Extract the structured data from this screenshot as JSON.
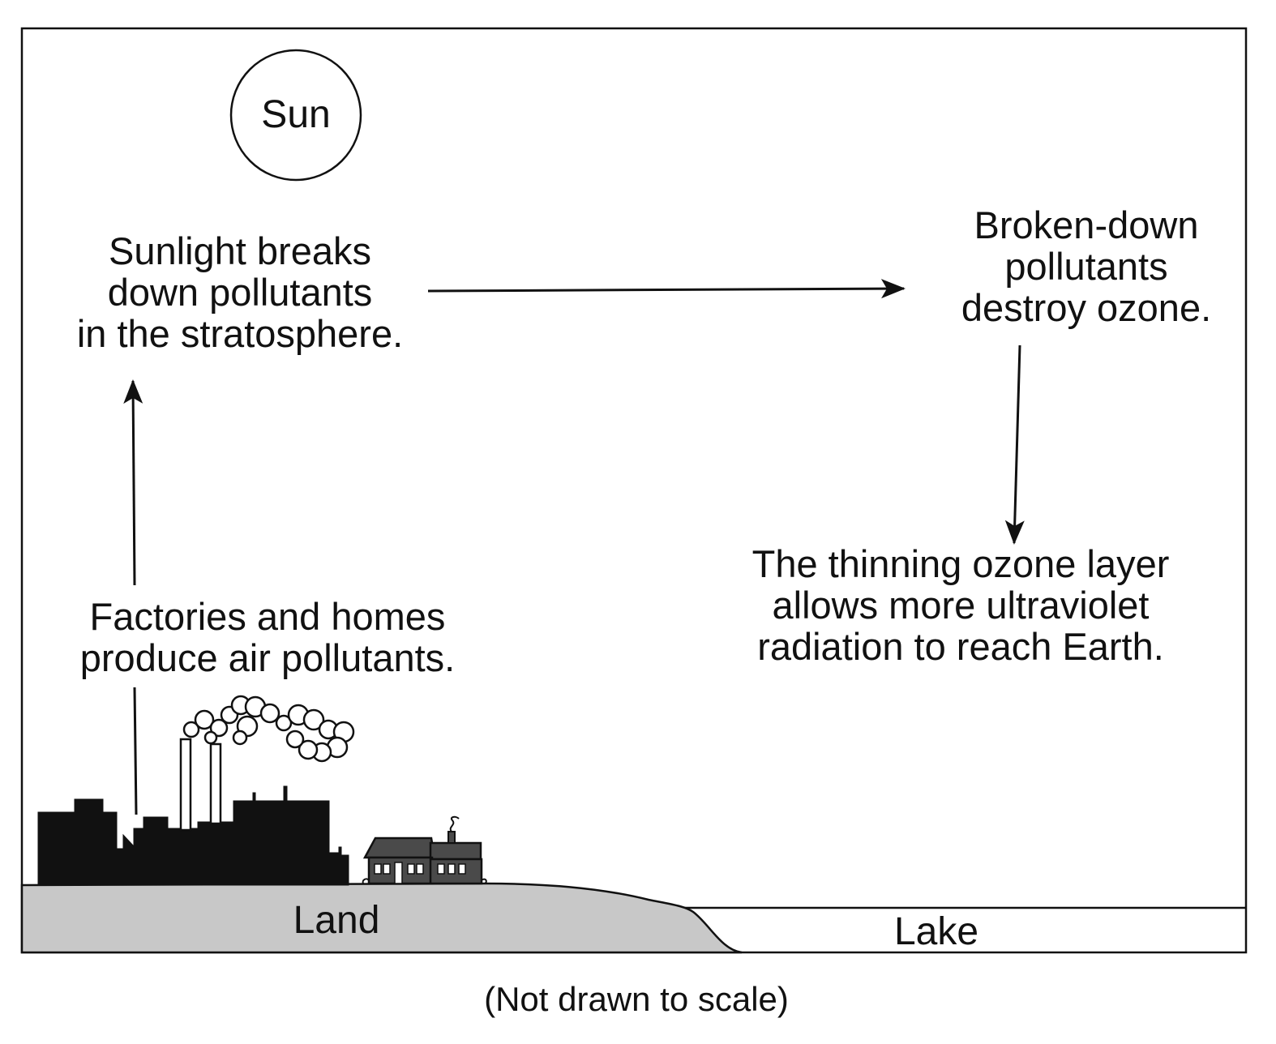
{
  "diagram": {
    "sun_label": "Sun",
    "steps": [
      {
        "id": "factories",
        "lines": [
          "Factories and homes",
          "produce air pollutants."
        ]
      },
      {
        "id": "sunlight",
        "lines": [
          "Sunlight breaks",
          "down pollutants",
          "in the stratosphere."
        ]
      },
      {
        "id": "broken-down",
        "lines": [
          "Broken-down",
          "pollutants",
          "destroy ozone."
        ]
      },
      {
        "id": "thinning",
        "lines": [
          "The thinning ozone layer",
          "allows more ultraviolet",
          "radiation to reach Earth."
        ]
      }
    ],
    "land_label": "Land",
    "lake_label": "Lake",
    "note": "(Not drawn to scale)",
    "colors": {
      "land": "#c8c8c8",
      "ink": "#111111",
      "house": "#4a4a4a"
    }
  }
}
